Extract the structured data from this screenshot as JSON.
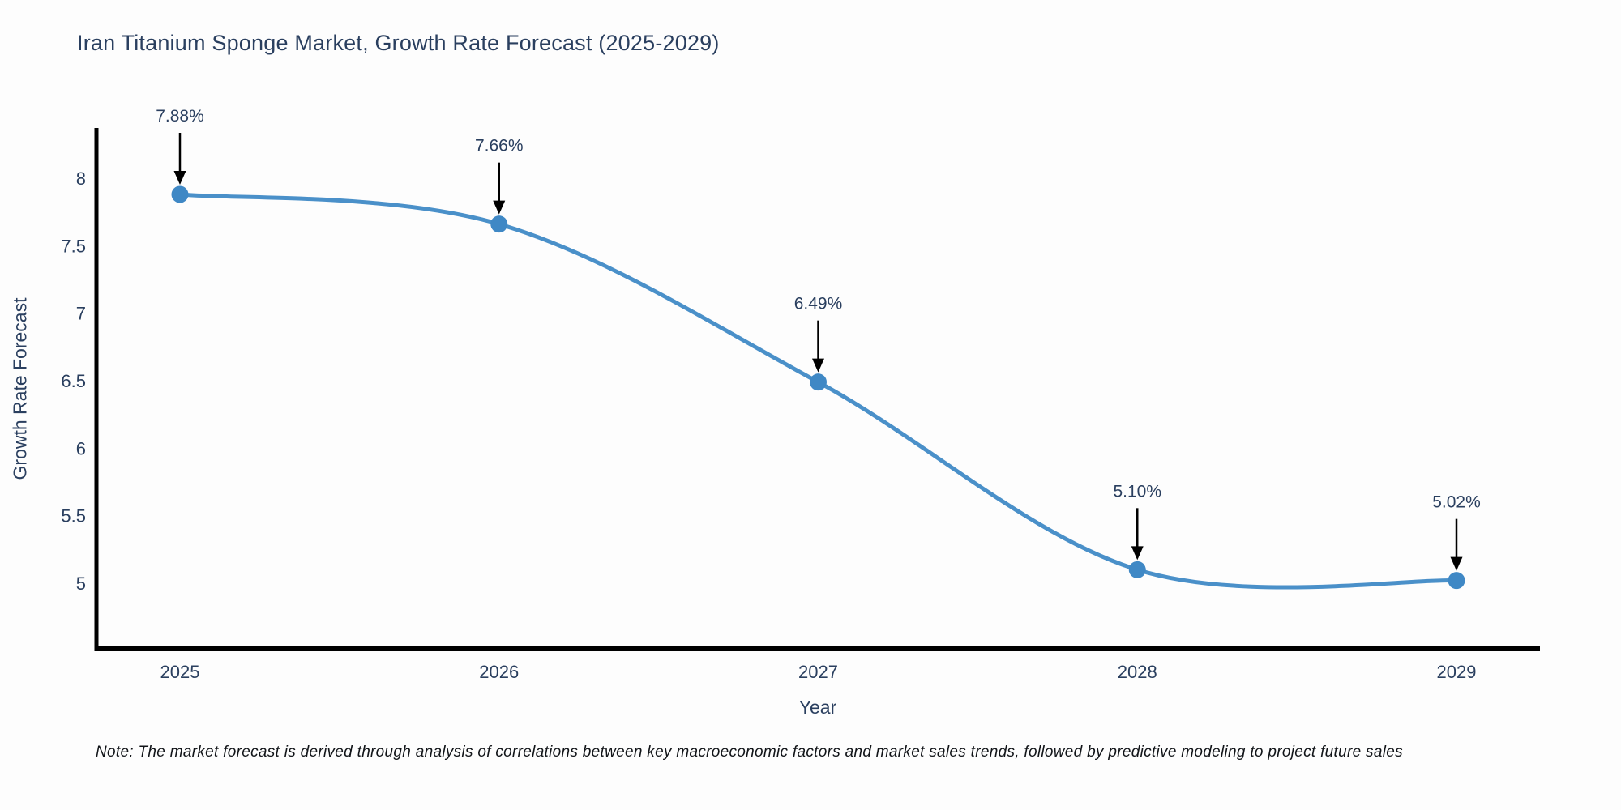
{
  "title": "Iran Titanium Sponge Market, Growth Rate Forecast (2025-2029)",
  "note": "Note: The market forecast is derived through analysis of correlations between key macroeconomic factors and market sales trends, followed by predictive modeling to project future sales",
  "chart_data": {
    "type": "line",
    "title": "Iran Titanium Sponge Market, Growth Rate Forecast (2025-2029)",
    "xlabel": "Year",
    "ylabel": "Growth Rate Forecast",
    "x": [
      2025,
      2026,
      2027,
      2028,
      2029
    ],
    "xtick_labels": [
      "2025",
      "2026",
      "2027",
      "2028",
      "2029"
    ],
    "series": [
      {
        "name": "Growth Rate Forecast",
        "values": [
          7.88,
          7.66,
          6.49,
          5.1,
          5.02
        ],
        "point_labels": [
          "7.88%",
          "7.66%",
          "6.49%",
          "5.10%",
          "5.02%"
        ]
      }
    ],
    "yticks": [
      5,
      5.5,
      6,
      6.5,
      7,
      7.5,
      8
    ],
    "ytick_labels": [
      "5",
      "5.5",
      "6",
      "6.5",
      "7",
      "7.5",
      "8"
    ],
    "ylim": [
      4.5,
      8.38
    ],
    "grid": false,
    "line_style": "spline",
    "markers": true,
    "annotations_arrows": true,
    "legend": "none",
    "colors": {
      "line": "#4a90c9",
      "marker": "#3f88c5",
      "axis_line": "#000000",
      "tick_text": "#2a3f5f",
      "annotation_text": "#2a3f5f",
      "annotation_arrow": "#000000",
      "background": "#fdfdfd"
    }
  }
}
